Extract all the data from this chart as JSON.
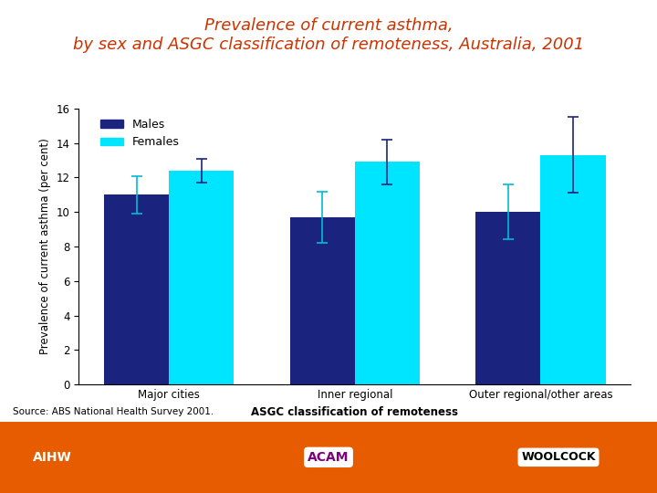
{
  "title_line1": "Prevalence of current asthma,",
  "title_line2": "by sex and ASGC classification of remoteness, Australia, 2001",
  "title_color": "#cc3300",
  "categories": [
    "Major cities",
    "Inner regional",
    "Outer regional/other areas"
  ],
  "males_values": [
    11.0,
    9.7,
    10.0
  ],
  "females_values": [
    12.4,
    12.9,
    13.3
  ],
  "males_errors": [
    1.1,
    1.5,
    1.6
  ],
  "females_errors": [
    0.7,
    1.3,
    2.2
  ],
  "males_color": "#1a237e",
  "females_color": "#00e5ff",
  "error_color_males": "#00bcd4",
  "error_color_females": "#1a237e",
  "ylabel": "Prevalence of current asthma (per cent)",
  "xlabel": "ASGC classification of remoteness",
  "ylim": [
    0,
    16
  ],
  "yticks": [
    0,
    2,
    4,
    6,
    8,
    10,
    12,
    14,
    16
  ],
  "legend_labels": [
    "Males",
    "Females"
  ],
  "source_text": "Source: ABS National Health Survey 2001.",
  "bar_width": 0.35,
  "background_color": "#ffffff",
  "title_fontsize": 13,
  "axis_label_fontsize": 8.5,
  "tick_fontsize": 8.5,
  "legend_fontsize": 9,
  "orange_color": "#e85c00"
}
